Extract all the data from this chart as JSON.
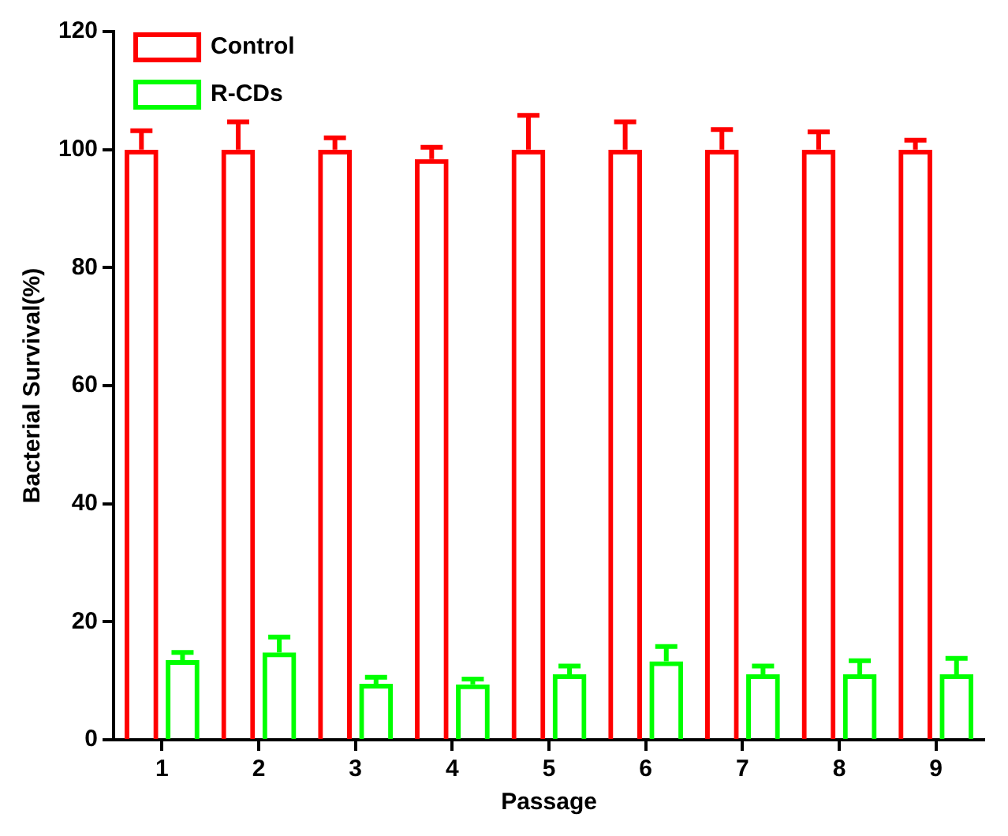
{
  "chart_data": {
    "type": "bar",
    "xlabel": "Passage",
    "ylabel": "Bacterial Survival(%)",
    "categories": [
      "1",
      "2",
      "3",
      "4",
      "5",
      "6",
      "7",
      "8",
      "9"
    ],
    "series": [
      {
        "name": "Control",
        "color": "#ff0000",
        "values": [
          100,
          100,
          100,
          98.4,
          100,
          100,
          100,
          100,
          100
        ],
        "errors": [
          3.2,
          4.7,
          2,
          2,
          5.8,
          4.7,
          3.4,
          3,
          1.6
        ]
      },
      {
        "name": "R-CDs",
        "color": "#00ff00",
        "values": [
          13.5,
          14.8,
          9.5,
          9.4,
          11.1,
          13.3,
          11.1,
          11.1,
          11.1
        ],
        "errors": [
          1.3,
          2.6,
          1.1,
          0.9,
          1.4,
          2.5,
          1.4,
          2.3,
          2.7
        ]
      }
    ],
    "ylim": [
      0,
      120
    ],
    "yticks": [
      0,
      20,
      40,
      60,
      80,
      100,
      120
    ],
    "grid": false,
    "legend": "top left"
  }
}
